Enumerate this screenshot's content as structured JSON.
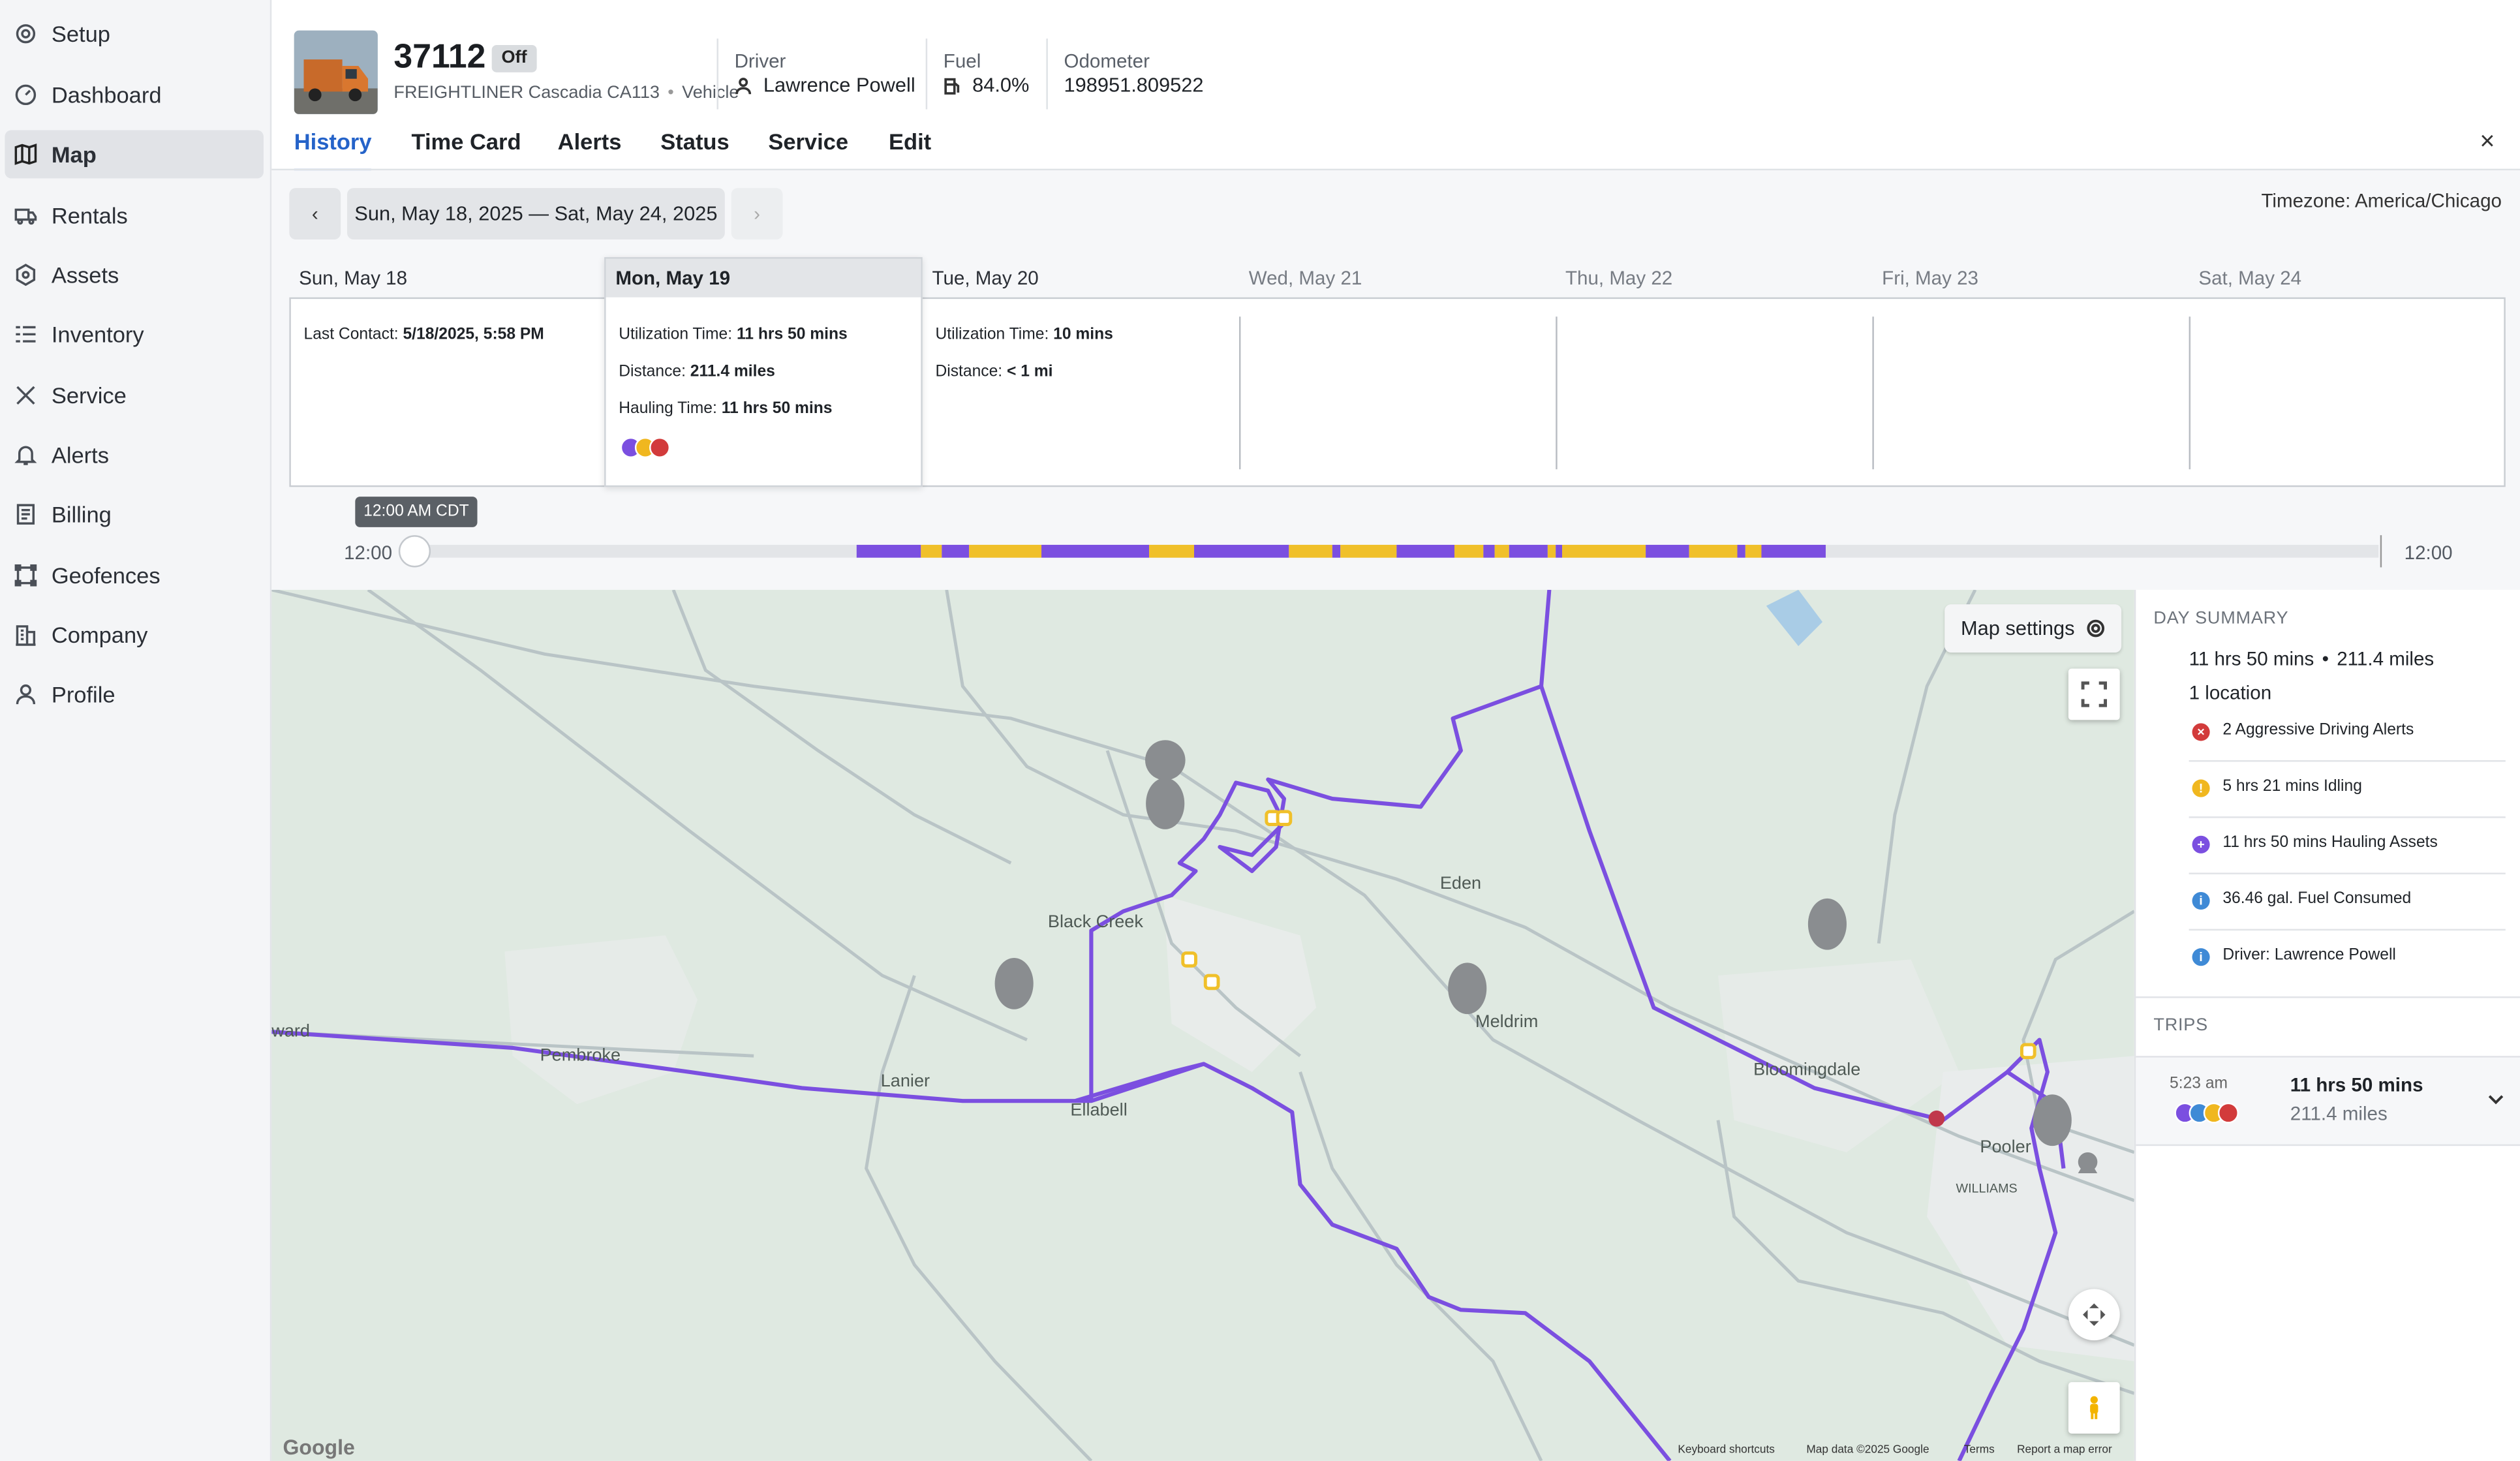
{
  "sidebar": {
    "items": [
      {
        "label": "Setup",
        "icon": "gear-icon"
      },
      {
        "label": "Dashboard",
        "icon": "gauge-icon"
      },
      {
        "label": "Map",
        "icon": "map-icon",
        "active": true
      },
      {
        "label": "Rentals",
        "icon": "truck-icon"
      },
      {
        "label": "Assets",
        "icon": "asset-icon"
      },
      {
        "label": "Inventory",
        "icon": "list-icon"
      },
      {
        "label": "Service",
        "icon": "wrench-icon"
      },
      {
        "label": "Alerts",
        "icon": "bell-icon"
      },
      {
        "label": "Billing",
        "icon": "document-icon"
      },
      {
        "label": "Geofences",
        "icon": "polygon-icon"
      },
      {
        "label": "Company",
        "icon": "building-icon"
      },
      {
        "label": "Profile",
        "icon": "user-icon"
      }
    ]
  },
  "header": {
    "unit_id": "37112",
    "status_badge": "Off",
    "make_model": "FREIGHTLINER Cascadia CA113",
    "category": "Vehicle",
    "driver_label": "Driver",
    "driver_value": "Lawrence Powell",
    "fuel_label": "Fuel",
    "fuel_value": "84.0%",
    "odometer_label": "Odometer",
    "odometer_value": "198951.809522",
    "close": "×"
  },
  "tabs": [
    "History",
    "Time Card",
    "Alerts",
    "Status",
    "Service",
    "Edit"
  ],
  "history": {
    "prev": "‹",
    "next": "›",
    "range": "Sun, May 18, 2025 — Sat, May 24, 2025",
    "timezone": "Timezone: America/Chicago",
    "days": [
      "Sun, May 18",
      "Mon, May 19",
      "Tue, May 20",
      "Wed, May 21",
      "Thu, May 22",
      "Fri, May 23",
      "Sat, May 24"
    ],
    "sun": {
      "last_contact_label": "Last Contact:",
      "last_contact_value": "5/18/2025, 5:58 PM"
    },
    "mon": {
      "util_label": "Utilization Time:",
      "util_value": "11 hrs 50 mins",
      "dist_label": "Distance:",
      "dist_value": "211.4 miles",
      "haul_label": "Hauling Time:",
      "haul_value": "11 hrs 50 mins"
    },
    "tue": {
      "util_label": "Utilization Time:",
      "util_value": "10 mins",
      "dist_label": "Distance:",
      "dist_value": "< 1 mi"
    },
    "timeline": {
      "start": "12:00",
      "end": "12:00",
      "tooltip": "12:00 AM CDT"
    }
  },
  "map": {
    "settings_label": "Map settings",
    "places": [
      "Black Creek",
      "Eden",
      "Meldrim",
      "Bloomingdale",
      "Pembroke",
      "Lanier",
      "Ellabell",
      "Pooler",
      "WILLIAMS",
      "ward"
    ],
    "footer": [
      "Keyboard shortcuts",
      "Map data ©2025 Google",
      "Terms",
      "Report a map error"
    ],
    "logo": "Google",
    "colors": {
      "route": "#7b4fe0",
      "idle": "#f0c02a",
      "road": "#b9c4c6",
      "land": "#dfe9e1"
    }
  },
  "day_summary": {
    "title": "DAY SUMMARY",
    "time": "11 hrs 50 mins",
    "distance": "211.4 miles",
    "locations": "1 location",
    "rows": [
      {
        "text": "2 Aggressive Driving Alerts",
        "color": "#d23b3b",
        "glyph": "×"
      },
      {
        "text": "5 hrs 21 mins Idling",
        "color": "#f0b71f",
        "glyph": "!"
      },
      {
        "text": "11 hrs 50 mins Hauling Assets",
        "color": "#7b4fe0",
        "glyph": "+"
      },
      {
        "text": "36.46 gal. Fuel Consumed",
        "color": "#3f8ad6",
        "glyph": "i"
      },
      {
        "text": "Driver: Lawrence Powell",
        "color": "#3f8ad6",
        "glyph": "i"
      }
    ]
  },
  "trips": {
    "title": "TRIPS",
    "time": "5:23 am",
    "duration": "11 hrs 50 mins",
    "distance": "211.4 miles"
  }
}
